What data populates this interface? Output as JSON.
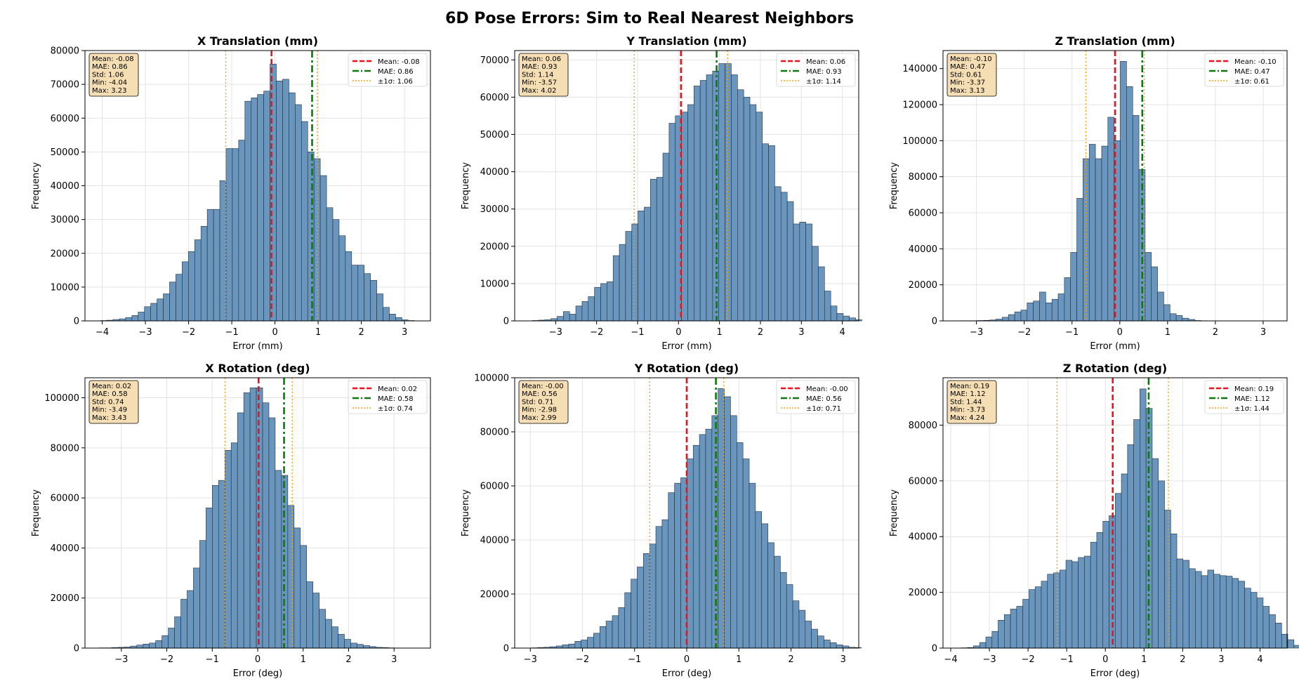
{
  "figure": {
    "title": "6D Pose Errors: Sim to Real Nearest Neighbors",
    "colors": {
      "bar": "#6a96be",
      "bar_edge": "#1f2f3f",
      "mean": "#e8131c",
      "mae": "#0a7a0a",
      "std": "#f0a21a",
      "stats_box": "#f5deb3"
    }
  },
  "chart_data": [
    {
      "type": "bar",
      "title": "X Translation (mm)",
      "xlabel": "Error (mm)",
      "ylabel": "Frequency",
      "xlim": [
        -4.4,
        3.6
      ],
      "ylim": [
        0,
        80000
      ],
      "xticks": [
        -4,
        -3,
        -2,
        -1,
        0,
        1,
        2,
        3
      ],
      "yticks": [
        0,
        10000,
        20000,
        30000,
        40000,
        50000,
        60000,
        70000,
        80000
      ],
      "bin_start": -4.04,
      "bin_width": 0.1454,
      "values": [
        100,
        200,
        400,
        600,
        1000,
        1600,
        2600,
        4200,
        5200,
        6500,
        8000,
        11500,
        13800,
        17500,
        20500,
        24000,
        28000,
        33000,
        33000,
        41500,
        51000,
        51000,
        53500,
        65000,
        66000,
        67000,
        68000,
        76000,
        71000,
        71500,
        67500,
        64000,
        59000,
        50000,
        48000,
        43000,
        33500,
        30000,
        25200,
        20500,
        16500,
        16500,
        14000,
        12000,
        8000,
        4000,
        2000,
        1000,
        300,
        100
      ],
      "mean": -0.08,
      "mae": 0.86,
      "std": 1.06,
      "stats": [
        "Mean: -0.08",
        "MAE: 0.86",
        "Std: 1.06",
        "Min: -4.04",
        "Max: 3.23"
      ],
      "legend": [
        "Mean: -0.08",
        "MAE: 0.86",
        "±1σ: 1.06"
      ]
    },
    {
      "type": "bar",
      "title": "Y Translation (mm)",
      "xlabel": "Error (mm)",
      "ylabel": "Frequency",
      "xlim": [
        -4.0,
        4.4
      ],
      "ylim": [
        0,
        72500
      ],
      "xticks": [
        -3,
        -2,
        -1,
        0,
        1,
        2,
        3,
        4
      ],
      "yticks": [
        0,
        10000,
        20000,
        30000,
        40000,
        50000,
        60000,
        70000
      ],
      "bin_start": -3.57,
      "bin_width": 0.1518,
      "values": [
        100,
        200,
        300,
        600,
        1200,
        2500,
        1800,
        4000,
        5200,
        6500,
        9000,
        10000,
        10500,
        17500,
        20500,
        24000,
        26000,
        29500,
        30500,
        38000,
        38500,
        45000,
        53000,
        55000,
        56000,
        58000,
        63000,
        64500,
        66000,
        67000,
        69000,
        69000,
        66000,
        62000,
        60000,
        58000,
        56000,
        47500,
        47000,
        36000,
        34500,
        32000,
        26000,
        26500,
        26000,
        20000,
        14500,
        8000,
        4000,
        2000,
        1300,
        800,
        300
      ],
      "mean": 0.06,
      "mae": 0.93,
      "std": 1.14,
      "stats": [
        "Mean: 0.06",
        "MAE: 0.93",
        "Std: 1.14",
        "Min: -3.57",
        "Max: 4.02"
      ],
      "legend": [
        "Mean: 0.06",
        "MAE: 0.93",
        "±1σ: 1.14"
      ]
    },
    {
      "type": "bar",
      "title": "Z Translation (mm)",
      "xlabel": "Error (mm)",
      "ylabel": "Frequency",
      "xlim": [
        -3.7,
        3.5
      ],
      "ylim": [
        0,
        150000
      ],
      "xticks": [
        -3,
        -2,
        -1,
        0,
        1,
        2,
        3
      ],
      "yticks": [
        0,
        20000,
        40000,
        60000,
        80000,
        100000,
        120000,
        140000
      ],
      "bin_start": -3.37,
      "bin_width": 0.13,
      "values": [
        100,
        100,
        100,
        200,
        300,
        500,
        1000,
        2000,
        3500,
        5000,
        6000,
        10000,
        11000,
        16000,
        10000,
        12000,
        15000,
        24000,
        38000,
        68000,
        90000,
        98000,
        90000,
        97000,
        113000,
        100000,
        144000,
        130000,
        114000,
        84000,
        38000,
        30000,
        16000,
        9000,
        4000,
        3000,
        1500,
        800,
        200,
        100
      ],
      "mean": -0.1,
      "mae": 0.47,
      "std": 0.61,
      "stats": [
        "Mean: -0.10",
        "MAE: 0.47",
        "Std: 0.61",
        "Min: -3.37",
        "Max: 3.13"
      ],
      "legend": [
        "Mean: -0.10",
        "MAE: 0.47",
        "±1σ: 0.61"
      ]
    },
    {
      "type": "bar",
      "title": "X Rotation (deg)",
      "xlabel": "Error (deg)",
      "ylabel": "Frequency",
      "xlim": [
        -3.8,
        3.8
      ],
      "ylim": [
        0,
        108000
      ],
      "xticks": [
        -3,
        -2,
        -1,
        0,
        1,
        2,
        3
      ],
      "yticks": [
        0,
        20000,
        40000,
        60000,
        80000,
        100000
      ],
      "bin_start": -3.49,
      "bin_width": 0.1384,
      "values": [
        100,
        100,
        200,
        300,
        400,
        800,
        1200,
        1600,
        2000,
        3000,
        5000,
        8000,
        12500,
        19500,
        23000,
        32000,
        43000,
        56000,
        65000,
        67000,
        79000,
        82000,
        94000,
        102000,
        104000,
        104000,
        98000,
        92000,
        71000,
        69000,
        57000,
        48000,
        41000,
        26500,
        22000,
        15500,
        11500,
        8500,
        5500,
        3500,
        2000,
        1500,
        1000,
        600,
        300,
        200,
        100
      ],
      "mean": 0.02,
      "mae": 0.58,
      "std": 0.74,
      "stats": [
        "Mean: 0.02",
        "MAE: 0.58",
        "Std: 0.74",
        "Min: -3.49",
        "Max: 3.43"
      ],
      "legend": [
        "Mean: 0.02",
        "MAE: 0.58",
        "±1σ: 0.74"
      ]
    },
    {
      "type": "bar",
      "title": "Y Rotation (deg)",
      "xlabel": "Error (deg)",
      "ylabel": "Frequency",
      "xlim": [
        -3.3,
        3.3
      ],
      "ylim": [
        0,
        100000
      ],
      "xticks": [
        -3,
        -2,
        -1,
        0,
        1,
        2,
        3
      ],
      "yticks": [
        0,
        20000,
        40000,
        60000,
        80000,
        100000
      ],
      "bin_start": -2.98,
      "bin_width": 0.1194,
      "values": [
        100,
        200,
        300,
        500,
        800,
        1200,
        1500,
        2500,
        3000,
        4000,
        5500,
        8000,
        10000,
        12000,
        15000,
        20500,
        25500,
        30000,
        35000,
        38500,
        45000,
        47500,
        57500,
        61000,
        63000,
        70000,
        75000,
        79000,
        81000,
        86000,
        96000,
        93000,
        86000,
        76000,
        70000,
        61000,
        50500,
        46000,
        39000,
        34000,
        28000,
        23500,
        17500,
        14000,
        10000,
        7000,
        4500,
        3000,
        2000,
        1200,
        800,
        300,
        200
      ],
      "mean": -0.0,
      "mae": 0.56,
      "std": 0.71,
      "stats": [
        "Mean: -0.00",
        "MAE: 0.56",
        "Std: 0.71",
        "Min: -2.98",
        "Max: 2.99"
      ],
      "legend": [
        "Mean: -0.00",
        "MAE: 0.56",
        "±1σ: 0.71"
      ]
    },
    {
      "type": "bar",
      "title": "Z Rotation (deg)",
      "xlabel": "Error (deg)",
      "ylabel": "Frequency",
      "xlim": [
        -4.2,
        4.7
      ],
      "ylim": [
        0,
        97000
      ],
      "xticks": [
        -4,
        -3,
        -2,
        -1,
        0,
        1,
        2,
        3,
        4
      ],
      "yticks": [
        0,
        20000,
        40000,
        60000,
        80000
      ],
      "bin_start": -3.73,
      "bin_width": 0.1594,
      "values": [
        100,
        200,
        800,
        2000,
        4000,
        6000,
        10000,
        12000,
        14000,
        15000,
        17500,
        21000,
        22000,
        24000,
        26500,
        27000,
        28000,
        31500,
        31000,
        32500,
        33000,
        38000,
        41500,
        45500,
        47500,
        55500,
        62500,
        73000,
        82000,
        93000,
        86000,
        68000,
        60000,
        49500,
        41000,
        32000,
        31500,
        28500,
        27500,
        26000,
        28000,
        26500,
        26000,
        25800,
        25000,
        24000,
        21500,
        20000,
        18000,
        15000,
        12000,
        9000,
        5000,
        3000,
        1000,
        100
      ],
      "mean": 0.19,
      "mae": 1.12,
      "std": 1.44,
      "stats": [
        "Mean: 0.19",
        "MAE: 1.12",
        "Std: 1.44",
        "Min: -3.73",
        "Max: 4.24"
      ],
      "legend": [
        "Mean: 0.19",
        "MAE: 1.12",
        "±1σ: 1.44"
      ]
    }
  ]
}
